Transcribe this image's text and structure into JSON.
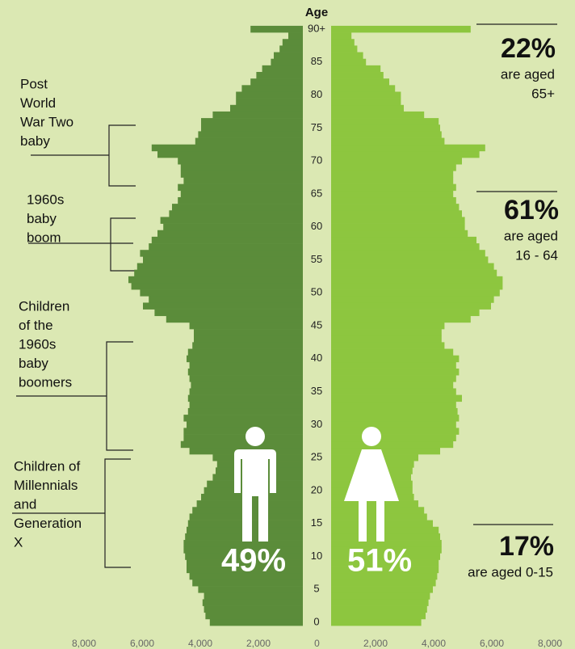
{
  "chart_data": {
    "type": "pyramid",
    "y_label": "Age",
    "yticks": [
      0,
      5,
      10,
      15,
      20,
      25,
      30,
      35,
      40,
      45,
      50,
      55,
      60,
      65,
      70,
      75,
      80,
      85,
      {
        "value": 90,
        "label": "90+"
      }
    ],
    "ylim": [
      0,
      90
    ],
    "xlim": [
      0,
      8000
    ],
    "xticks": [
      {
        "value": 0,
        "label": "0"
      },
      {
        "value": 2000,
        "label": "2,000"
      },
      {
        "value": 4000,
        "label": "4,000"
      },
      {
        "value": 6000,
        "label": "6,000"
      },
      {
        "value": 8000,
        "label": "8,000"
      }
    ],
    "series": [
      {
        "name": "49%",
        "color": "#5b8c3a",
        "side": "left",
        "values": [
          3200,
          3350,
          3400,
          3450,
          3400,
          3600,
          3800,
          3900,
          4000,
          4000,
          4050,
          4100,
          4100,
          4050,
          4000,
          3950,
          3900,
          3800,
          3650,
          3500,
          3400,
          3300,
          3100,
          3000,
          2950,
          3100,
          3900,
          4200,
          4100,
          4100,
          4000,
          4100,
          3950,
          3900,
          3950,
          3900,
          3850,
          3900,
          3950,
          3900,
          4000,
          3950,
          3800,
          3750,
          3750,
          3900,
          4700,
          5100,
          5500,
          5300,
          5600,
          5900,
          6000,
          5800,
          5700,
          5500,
          5600,
          5300,
          5200,
          5000,
          4800,
          4900,
          4600,
          4500,
          4300,
          4200,
          4300,
          4100,
          4200,
          4200,
          4300,
          5000,
          5200,
          3700,
          3600,
          3500,
          3500,
          3100,
          2500,
          2300,
          2300,
          2100,
          1800,
          1600,
          1400,
          1100,
          1000,
          800,
          700,
          500,
          1800
        ]
      },
      {
        "name": "51%",
        "color": "#8dc63f",
        "side": "right",
        "values": [
          3100,
          3250,
          3300,
          3350,
          3400,
          3500,
          3600,
          3650,
          3700,
          3700,
          3750,
          3800,
          3800,
          3750,
          3700,
          3500,
          3300,
          3200,
          3000,
          2850,
          2800,
          2800,
          2750,
          2800,
          2850,
          3000,
          3750,
          4200,
          4300,
          4400,
          4300,
          4400,
          4350,
          4300,
          4500,
          4300,
          4200,
          4300,
          4400,
          4300,
          4400,
          4200,
          3900,
          3800,
          3800,
          3900,
          4800,
          5100,
          5500,
          5600,
          5800,
          5900,
          5900,
          5700,
          5600,
          5400,
          5300,
          5100,
          5000,
          4700,
          4600,
          4600,
          4500,
          4400,
          4300,
          4200,
          4300,
          4200,
          4200,
          4300,
          4500,
          5100,
          5300,
          3900,
          3800,
          3750,
          3700,
          3200,
          2500,
          2400,
          2400,
          2200,
          2000,
          1800,
          1700,
          1200,
          1100,
          900,
          800,
          700,
          4800
        ]
      }
    ],
    "left_annotations": [
      {
        "lines": [
          "Post",
          "World",
          "War Two",
          "baby"
        ]
      },
      {
        "lines": [
          "1960s",
          "baby",
          "boom"
        ]
      },
      {
        "lines": [
          "Children",
          "of the",
          "1960s",
          "baby",
          "boomers"
        ]
      },
      {
        "lines": [
          "Children of",
          "Millennials",
          "and",
          "Generation",
          "X"
        ]
      }
    ],
    "right_annotations": [
      {
        "value": "22%",
        "lines": [
          "are aged",
          "65+"
        ]
      },
      {
        "value": "61%",
        "lines": [
          "are aged",
          "16 - 64"
        ]
      },
      {
        "value": "17%",
        "lines": [
          "are aged 0-15"
        ]
      }
    ]
  }
}
